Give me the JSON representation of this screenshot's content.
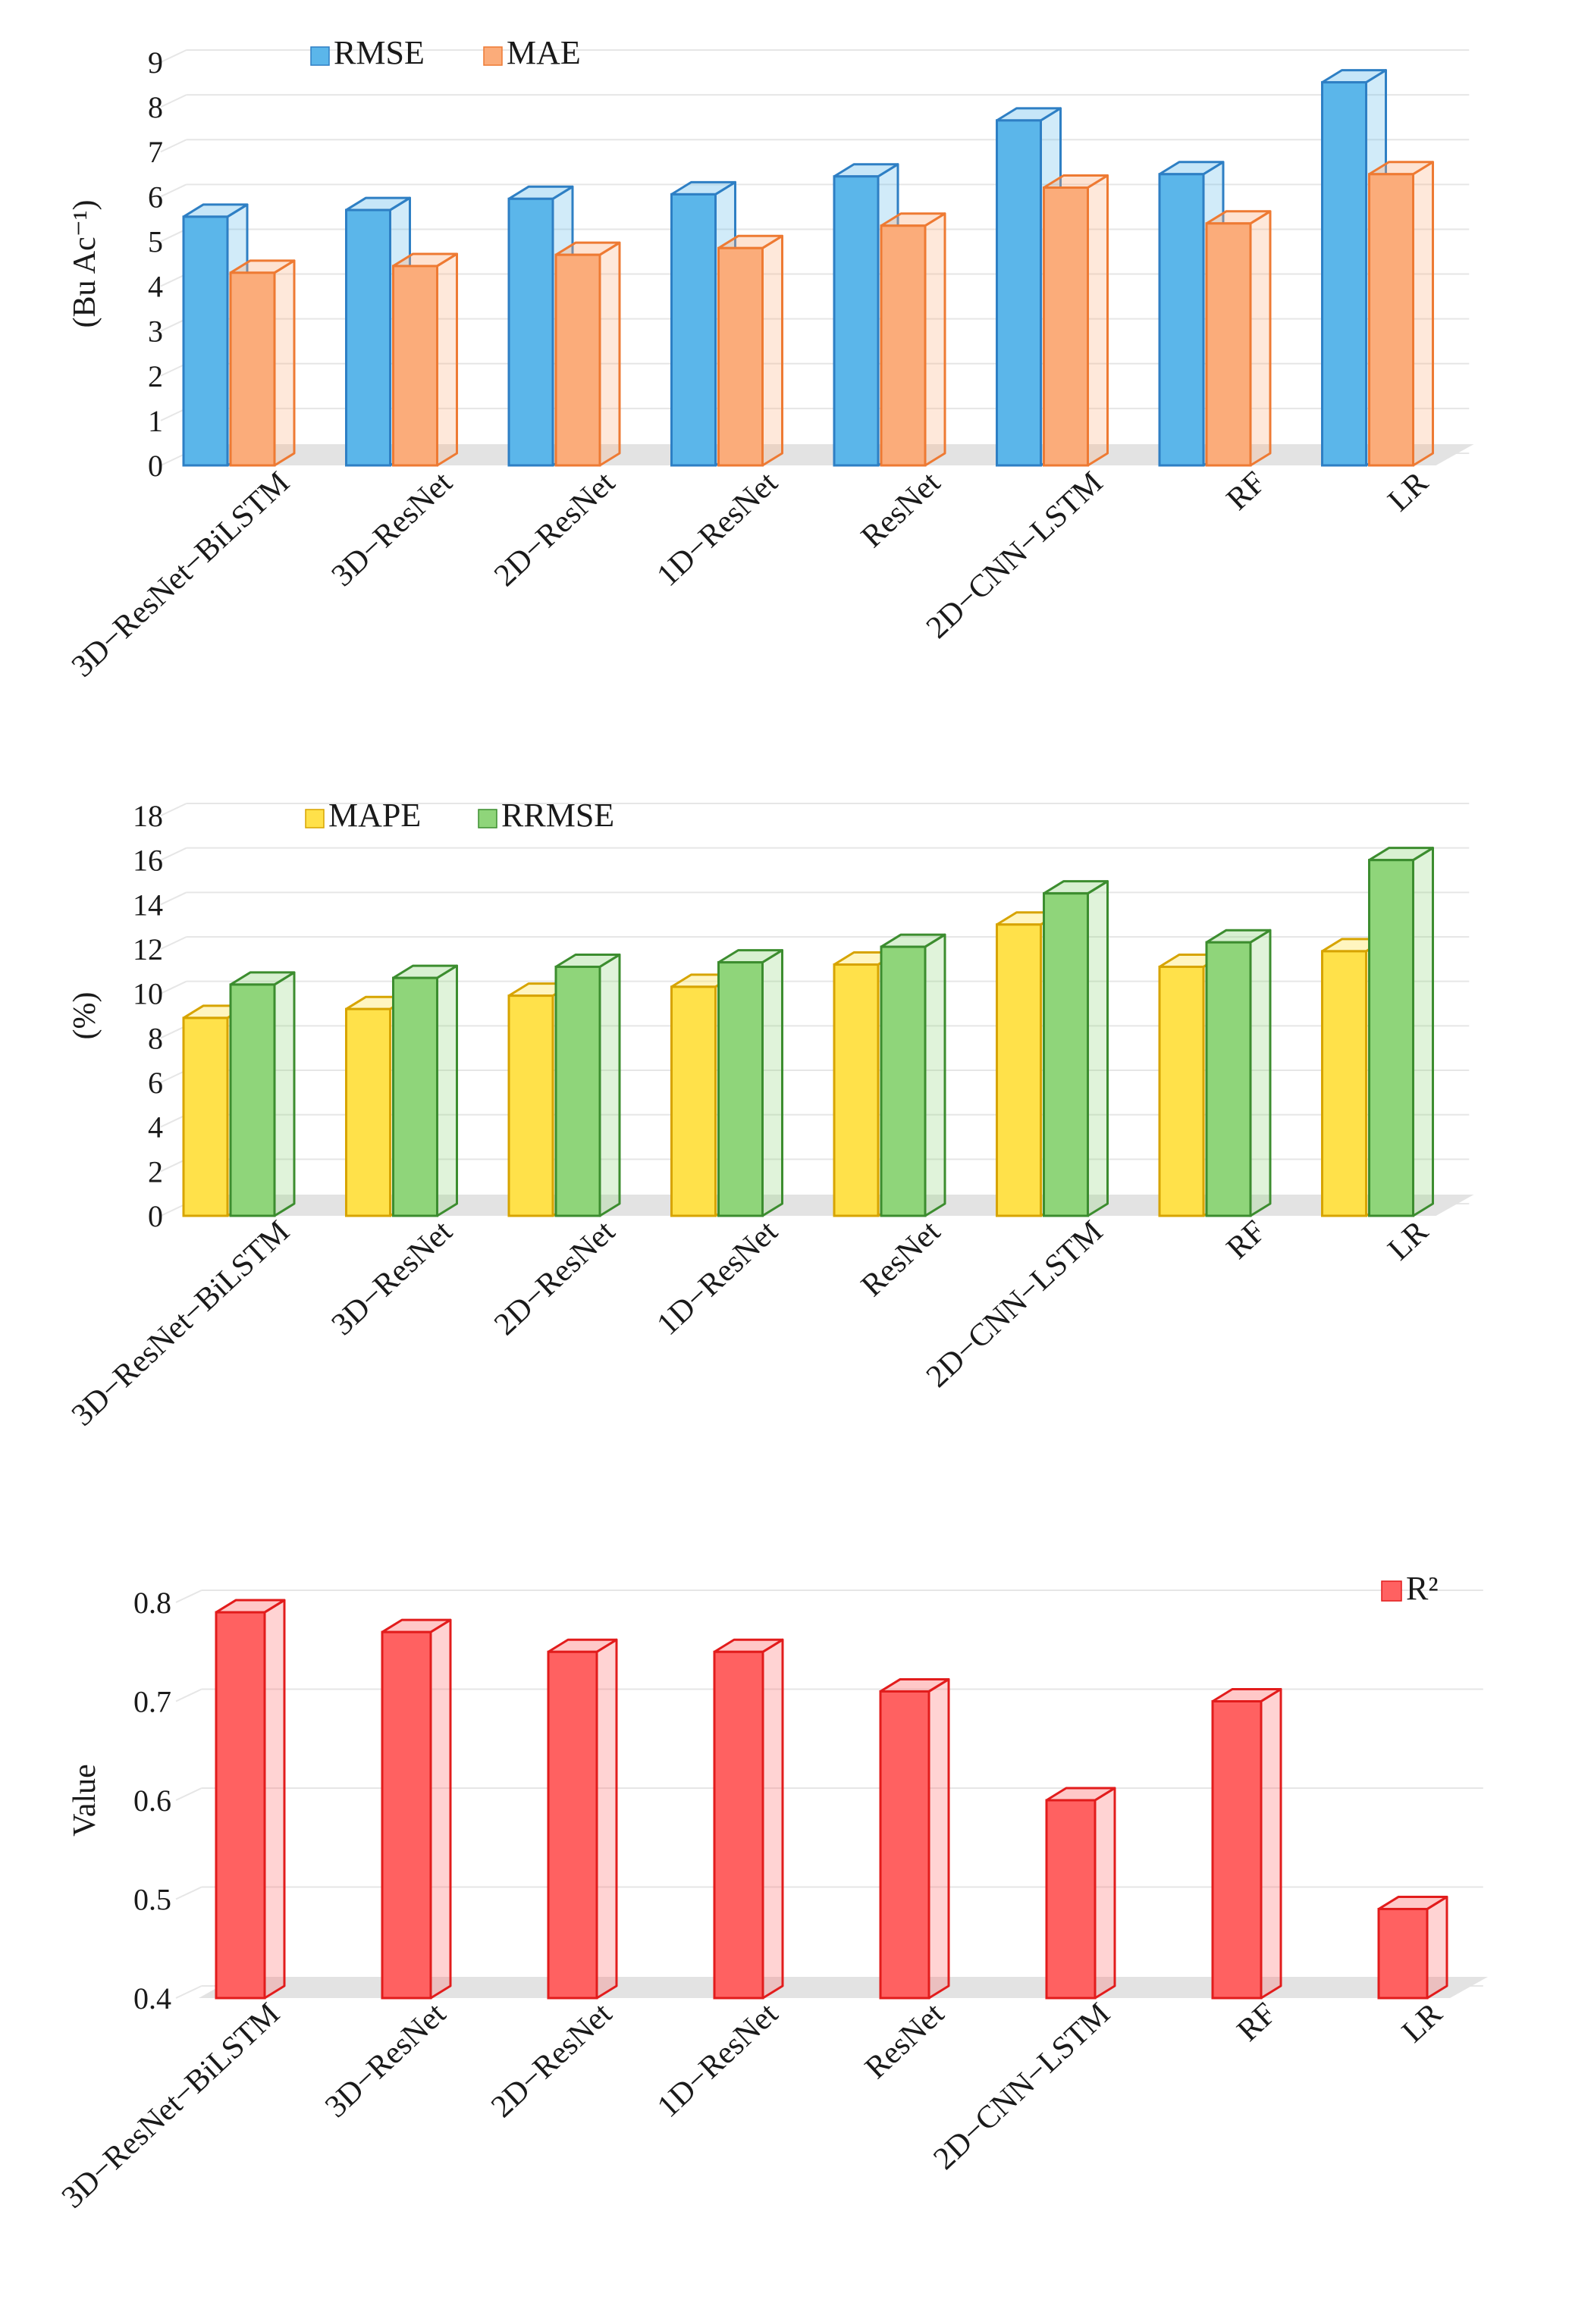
{
  "chart_data": [
    {
      "type": "bar",
      "title": "",
      "xlabel": "",
      "ylabel": "(Bu Ac⁻¹)",
      "ylim": [
        0,
        9
      ],
      "yticks": [
        0,
        1,
        2,
        3,
        4,
        5,
        6,
        7,
        8,
        9
      ],
      "categories": [
        "3D−ResNet−BiLSTM",
        "3D−ResNet",
        "2D−ResNet",
        "1D−ResNet",
        "ResNet",
        "2D−CNN−LSTM",
        "RF",
        "LR"
      ],
      "legend_position": "top-left",
      "series": [
        {
          "name": "RMSE",
          "values": [
            5.55,
            5.7,
            5.95,
            6.05,
            6.45,
            7.7,
            6.5,
            8.55
          ],
          "color": "#5bb6ea",
          "edge": "#2e7fc4"
        },
        {
          "name": "MAE",
          "values": [
            4.3,
            4.45,
            4.7,
            4.85,
            5.35,
            6.2,
            5.4,
            6.5
          ],
          "color": "#fbac7a",
          "edge": "#ee7a33"
        }
      ]
    },
    {
      "type": "bar",
      "title": "",
      "xlabel": "",
      "ylabel": "(%)",
      "ylim": [
        0,
        18
      ],
      "yticks": [
        0,
        2,
        4,
        6,
        8,
        10,
        12,
        14,
        16,
        18
      ],
      "categories": [
        "3D−ResNet−BiLSTM",
        "3D−ResNet",
        "2D−ResNet",
        "1D−ResNet",
        "ResNet",
        "2D−CNN−LSTM",
        "RF",
        "LR"
      ],
      "legend_position": "top-left",
      "series": [
        {
          "name": "MAPE",
          "values": [
            8.9,
            9.3,
            9.9,
            10.3,
            11.3,
            13.1,
            11.2,
            11.9
          ],
          "color": "#ffe14a",
          "edge": "#d7a400"
        },
        {
          "name": "RRMSE",
          "values": [
            10.4,
            10.7,
            11.2,
            11.4,
            12.1,
            14.5,
            12.3,
            16.0
          ],
          "color": "#8fd57a",
          "edge": "#3c8d2f"
        }
      ]
    },
    {
      "type": "bar",
      "title": "",
      "xlabel": "",
      "ylabel": "Value",
      "ylim": [
        0.4,
        0.8
      ],
      "yticks": [
        0.4,
        0.5,
        0.6,
        0.7,
        0.8
      ],
      "categories": [
        "3D−ResNet−BiLSTM",
        "3D−ResNet",
        "2D−ResNet",
        "1D−ResNet",
        "ResNet",
        "2D−CNN−LSTM",
        "RF",
        "LR"
      ],
      "legend_position": "top-right",
      "series": [
        {
          "name": "R²",
          "values": [
            0.79,
            0.77,
            0.75,
            0.75,
            0.71,
            0.6,
            0.7,
            0.49
          ],
          "color": "#ff6161",
          "edge": "#e21c1c"
        }
      ]
    }
  ]
}
